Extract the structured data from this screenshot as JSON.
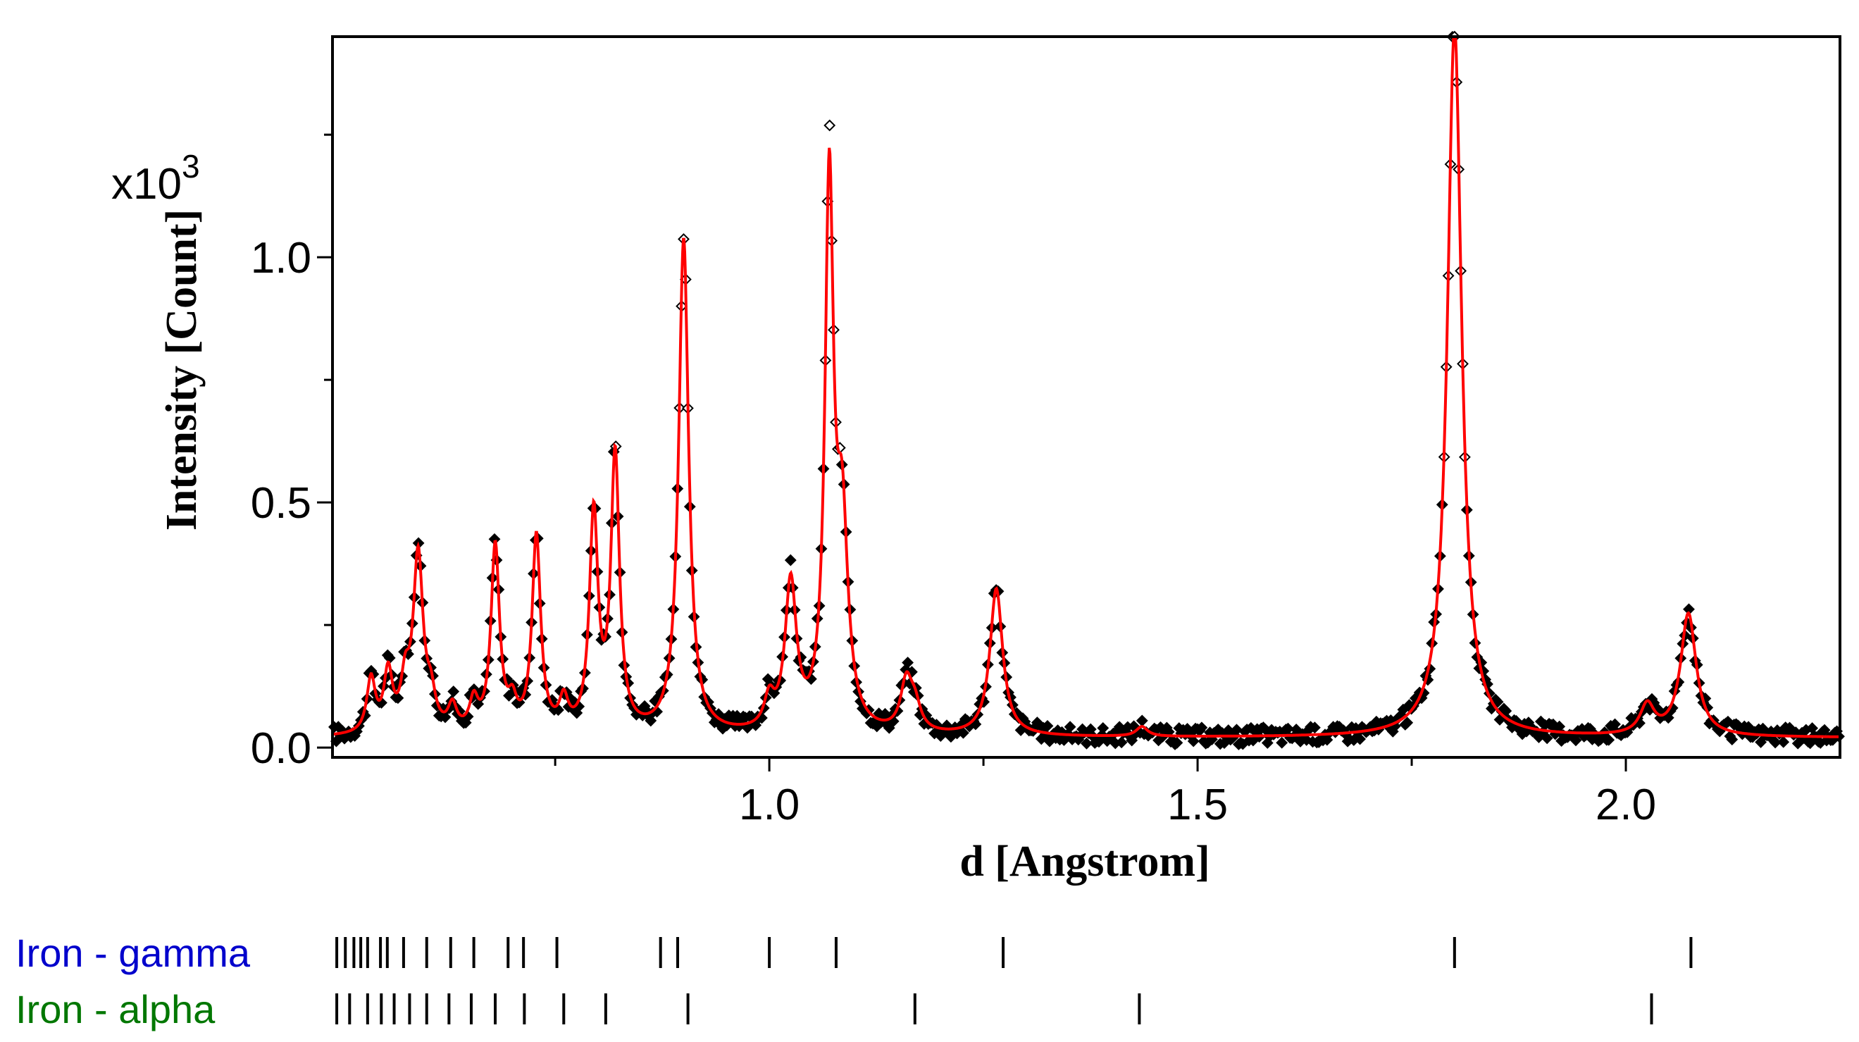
{
  "colors": {
    "observed": "#000000",
    "calculated": "#ff0000",
    "phase_gamma": "#0000cc",
    "phase_alpha": "#007700"
  },
  "chart_data": {
    "type": "line",
    "title": "",
    "xlabel": "d [Angstrom]",
    "ylabel": "Intensity [Count]",
    "y_multiplier": "x10",
    "y_multiplier_exp": "3",
    "xlim": [
      0.49,
      2.25
    ],
    "ylim": [
      -0.02,
      1.45
    ],
    "x_ticks": [
      {
        "value": 1.0,
        "label": "1.0"
      },
      {
        "value": 1.5,
        "label": "1.5"
      },
      {
        "value": 2.0,
        "label": "2.0"
      }
    ],
    "x_minor_ticks": [
      0.75,
      1.25,
      1.75
    ],
    "y_ticks": [
      {
        "value": 0.0,
        "label": "0.0"
      },
      {
        "value": 0.5,
        "label": "0.5"
      },
      {
        "value": 1.0,
        "label": "1.0"
      }
    ],
    "y_minor_ticks": [
      0.25,
      0.75,
      1.25
    ],
    "background": 0.02,
    "peaks": [
      {
        "d": 0.535,
        "height": 0.11,
        "width": 0.006
      },
      {
        "d": 0.555,
        "height": 0.12,
        "width": 0.006
      },
      {
        "d": 0.575,
        "height": 0.09,
        "width": 0.006
      },
      {
        "d": 0.59,
        "height": 0.36,
        "width": 0.007
      },
      {
        "d": 0.605,
        "height": 0.06,
        "width": 0.006
      },
      {
        "d": 0.63,
        "height": 0.05,
        "width": 0.006
      },
      {
        "d": 0.655,
        "height": 0.06,
        "width": 0.006
      },
      {
        "d": 0.68,
        "height": 0.38,
        "width": 0.006
      },
      {
        "d": 0.7,
        "height": 0.05,
        "width": 0.006
      },
      {
        "d": 0.728,
        "height": 0.4,
        "width": 0.006
      },
      {
        "d": 0.76,
        "height": 0.06,
        "width": 0.006
      },
      {
        "d": 0.795,
        "height": 0.44,
        "width": 0.006
      },
      {
        "d": 0.82,
        "height": 0.56,
        "width": 0.006
      },
      {
        "d": 0.9,
        "height": 1.01,
        "width": 0.007
      },
      {
        "d": 1.0,
        "height": 0.06,
        "width": 0.007
      },
      {
        "d": 1.025,
        "height": 0.3,
        "width": 0.008
      },
      {
        "d": 1.07,
        "height": 1.1,
        "width": 0.006
      },
      {
        "d": 1.085,
        "height": 0.4,
        "width": 0.008
      },
      {
        "d": 1.16,
        "height": 0.1,
        "width": 0.008
      },
      {
        "d": 1.17,
        "height": 0.05,
        "width": 0.008
      },
      {
        "d": 1.265,
        "height": 0.3,
        "width": 0.009
      },
      {
        "d": 1.435,
        "height": 0.02,
        "width": 0.008
      },
      {
        "d": 1.8,
        "height": 1.45,
        "width": 0.01
      },
      {
        "d": 2.025,
        "height": 0.06,
        "width": 0.01
      },
      {
        "d": 2.073,
        "height": 0.25,
        "width": 0.011
      }
    ],
    "series": [
      {
        "name": "observed",
        "style": "points",
        "color": "#000000"
      },
      {
        "name": "calculated",
        "style": "line",
        "color": "#ff0000"
      }
    ],
    "phases": [
      {
        "name": "Iron - gamma",
        "color": "#0000cc",
        "reflections": [
          0.495,
          0.505,
          0.515,
          0.523,
          0.531,
          0.546,
          0.554,
          0.573,
          0.6,
          0.628,
          0.655,
          0.695,
          0.713,
          0.752,
          0.873,
          0.893,
          1.0,
          1.078,
          1.273,
          1.8,
          2.076
        ]
      },
      {
        "name": "Iron - alpha",
        "color": "#007700",
        "reflections": [
          0.495,
          0.51,
          0.531,
          0.547,
          0.562,
          0.58,
          0.6,
          0.626,
          0.652,
          0.68,
          0.714,
          0.76,
          0.809,
          0.905,
          1.17,
          1.432,
          2.03
        ]
      }
    ]
  }
}
